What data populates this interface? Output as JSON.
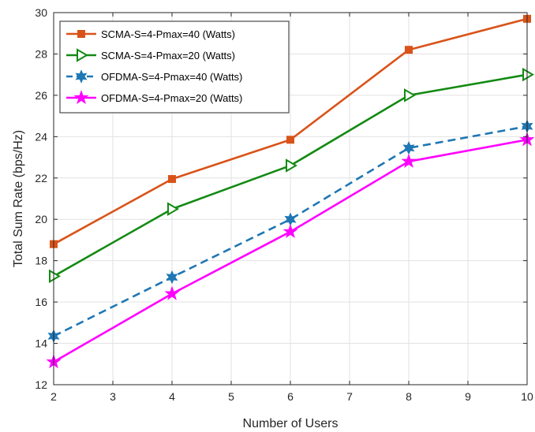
{
  "chart_data": {
    "type": "line",
    "title": "",
    "xlabel": "Number of Users",
    "ylabel": "Total Sum Rate (bps/Hz)",
    "xlim": [
      2,
      10
    ],
    "ylim": [
      12,
      30
    ],
    "xticks": [
      "2",
      "3",
      "4",
      "5",
      "6",
      "7",
      "8",
      "9",
      "10"
    ],
    "yticks": [
      "12",
      "14",
      "16",
      "18",
      "20",
      "22",
      "24",
      "26",
      "28",
      "30"
    ],
    "grid": true,
    "legend_position": "top-left",
    "x": [
      2,
      4,
      6,
      8,
      10
    ],
    "series": [
      {
        "name": "SCMA-S=4-Pmax=40 (Watts)",
        "values": [
          18.8,
          21.95,
          23.85,
          28.2,
          29.7
        ],
        "color": "#D95319",
        "marker": "square",
        "line_style": "solid"
      },
      {
        "name": "SCMA-S=4-Pmax=20 (Watts)",
        "values": [
          17.25,
          20.5,
          22.6,
          26.0,
          27.0
        ],
        "color": "#138A13",
        "marker": "triangle-right",
        "line_style": "solid"
      },
      {
        "name": "OFDMA-S=4-Pmax=40 (Watts)",
        "values": [
          14.35,
          17.2,
          20.0,
          23.45,
          24.5
        ],
        "color": "#1F77B4",
        "marker": "hexagram",
        "line_style": "dashed"
      },
      {
        "name": "OFDMA-S=4-Pmax=20 (Watts)",
        "values": [
          13.1,
          16.4,
          19.4,
          22.8,
          23.85
        ],
        "color": "#FF00FF",
        "marker": "pentagram",
        "line_style": "solid"
      }
    ]
  }
}
